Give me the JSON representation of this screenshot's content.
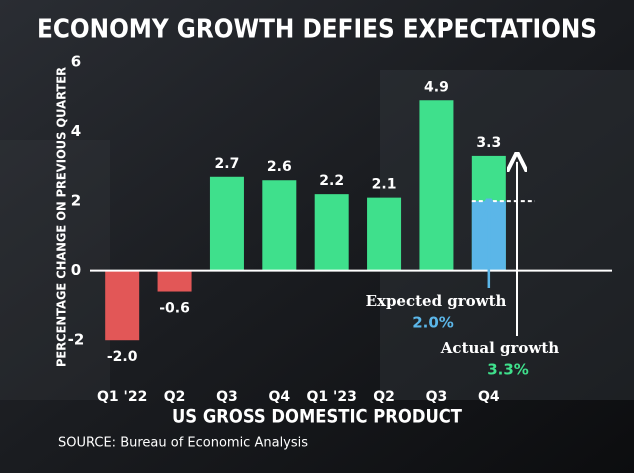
{
  "chart_data": {
    "type": "bar",
    "title": "ECONOMY GROWTH DEFIES EXPECTATIONS",
    "y_label": "PERCENTAGE CHANGE ON PREVIOUS QUARTER",
    "x_label": "US GROSS DOMESTIC PRODUCT",
    "source": "SOURCE: Bureau of Economic Analysis",
    "categories": [
      "Q1 '22",
      "Q2",
      "Q3",
      "Q4",
      "Q1 '23",
      "Q2",
      "Q3",
      "Q4"
    ],
    "values": [
      -2.0,
      -0.6,
      2.7,
      2.6,
      2.2,
      2.1,
      4.9,
      3.3
    ],
    "value_labels": [
      "-2.0",
      "-0.6",
      "2.7",
      "2.6",
      "2.2",
      "2.1",
      "4.9",
      "3.3"
    ],
    "positive_color": "#3fe08c",
    "negative_color": "#e25757",
    "ylim": [
      -3,
      6
    ],
    "yticks": [
      -2,
      0,
      2,
      4,
      6
    ],
    "expected": {
      "label": "Expected growth",
      "value": 2.0,
      "value_label": "2.0%",
      "color": "#5bb6e8"
    },
    "actual": {
      "label": "Actual growth",
      "value": 3.3,
      "value_label": "3.3%",
      "color": "#3fe08c"
    }
  }
}
